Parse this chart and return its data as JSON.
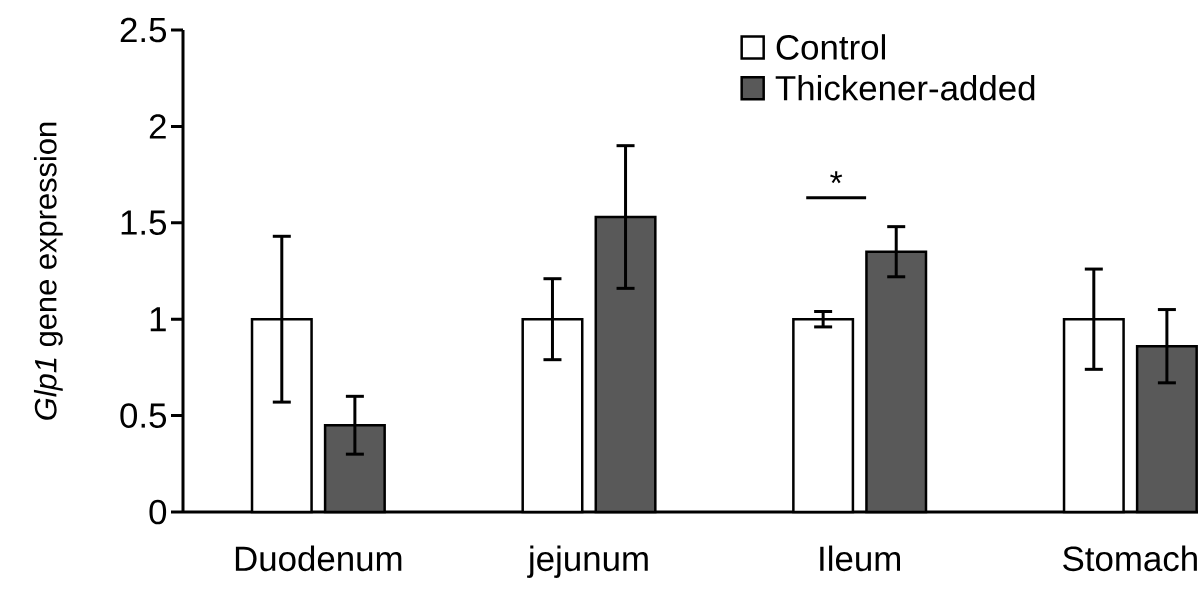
{
  "chart_data": {
    "type": "bar",
    "ylabel": "*Glp1* gene expression",
    "categories": [
      "Duodenum",
      "jejunum",
      "Ileum",
      "Stomach"
    ],
    "series": [
      {
        "name": "Control",
        "color": "#ffffff",
        "values": [
          1.0,
          1.0,
          1.0,
          1.0
        ],
        "errors": [
          0.43,
          0.21,
          0.04,
          0.26
        ]
      },
      {
        "name": "Thickener-added",
        "color": "#595959",
        "values": [
          0.45,
          1.53,
          1.35,
          0.86
        ],
        "errors": [
          0.15,
          0.37,
          0.13,
          0.19
        ]
      }
    ],
    "ylim": [
      0,
      2.5
    ],
    "yticks": [
      0,
      0.5,
      1,
      1.5,
      2,
      2.5
    ],
    "grid": false,
    "legend": "top",
    "annotations": [
      "*"
    ]
  }
}
